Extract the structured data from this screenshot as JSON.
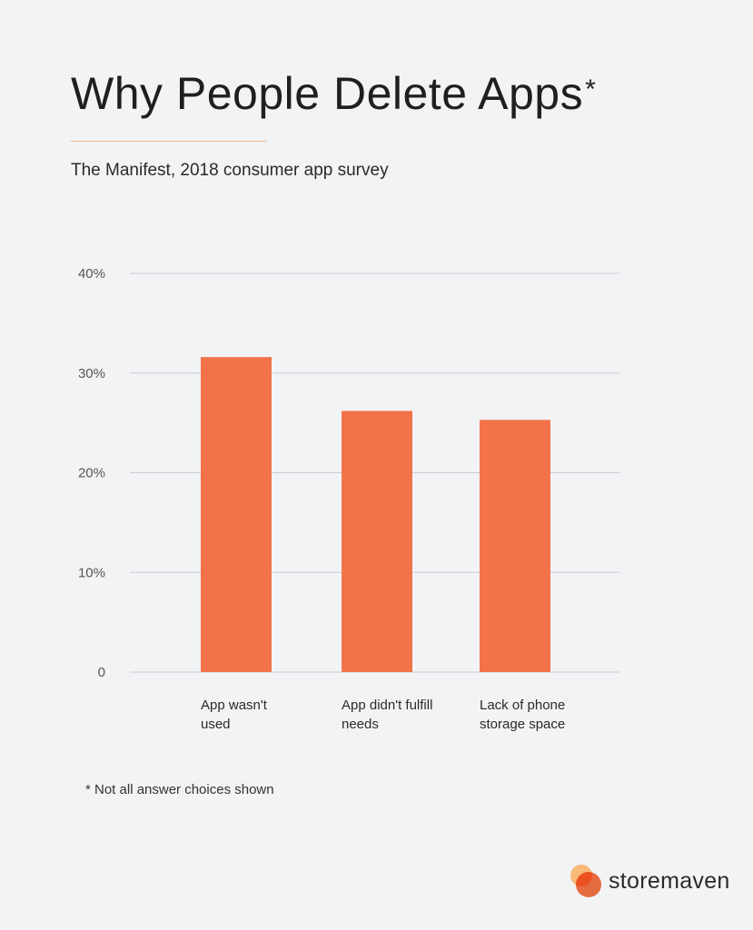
{
  "header": {
    "title": "Why People Delete Apps",
    "title_mark": "*",
    "subtitle": "The Manifest, 2018 consumer app survey"
  },
  "chart_data": {
    "type": "bar",
    "title": "Why People Delete Apps*",
    "subtitle": "The Manifest, 2018 consumer app survey",
    "categories": [
      [
        "App wasn't",
        "used"
      ],
      [
        "App didn't fulfill",
        "needs"
      ],
      [
        "Lack of phone",
        "storage space"
      ]
    ],
    "values": [
      31.6,
      26.2,
      25.3
    ],
    "unit": "%",
    "ylim": [
      0,
      40
    ],
    "yticks": [
      {
        "value": 0,
        "label": "0"
      },
      {
        "value": 10,
        "label": "10%"
      },
      {
        "value": 20,
        "label": "20%"
      },
      {
        "value": 30,
        "label": "30%"
      },
      {
        "value": 40,
        "label": "40%"
      }
    ],
    "xlabel": "",
    "ylabel": "",
    "grid": true,
    "legend": "none",
    "bar_color": "#f27249",
    "grid_color": "#c8ccd3"
  },
  "footnote": "* Not all answer choices shown",
  "brand": {
    "name": "storemaven",
    "logo_icon": "storemaven-logo-icon",
    "colors": {
      "light": "#f9b97a",
      "dark": "#f27042"
    }
  }
}
